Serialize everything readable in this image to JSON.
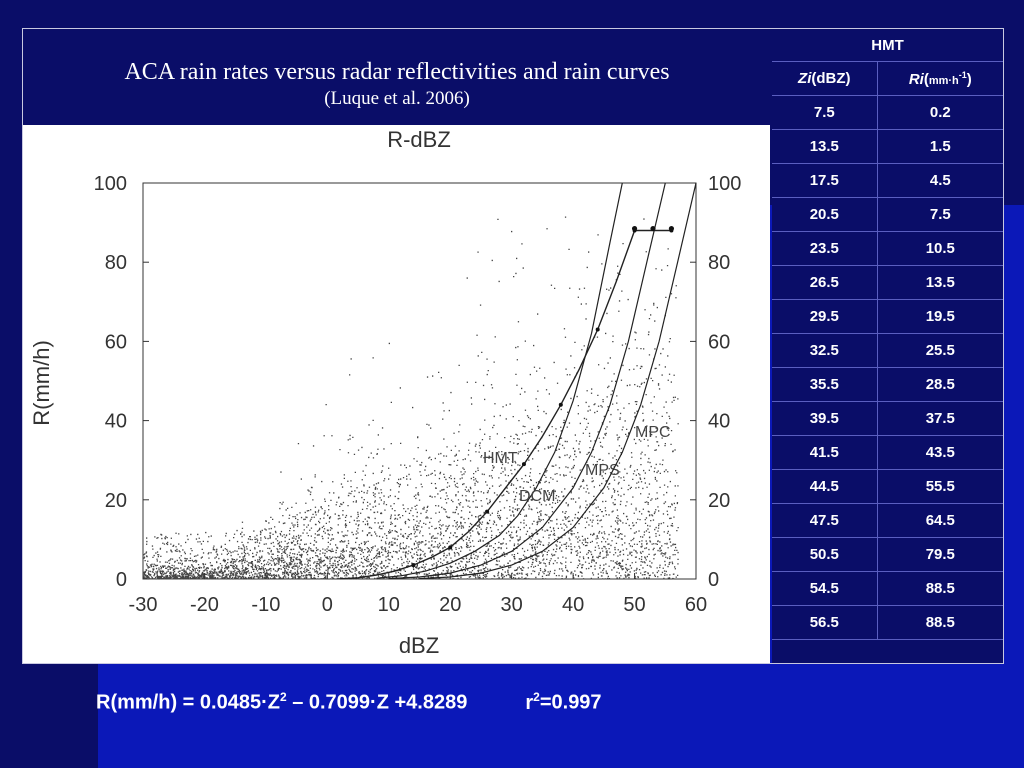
{
  "title": {
    "main": "ACA rain rates versus radar reflectivities and rain curves",
    "sub": "(Luque et al. 2006)"
  },
  "chart_data": {
    "type": "scatter",
    "title": "R-dBZ",
    "xlabel": "dBZ",
    "ylabel": "R(mm/h)",
    "xlim": [
      -30,
      60
    ],
    "ylim": [
      0,
      100
    ],
    "x_ticks": [
      "-30",
      "-20",
      "-10",
      "0",
      "10",
      "20",
      "30",
      "40",
      "50",
      "60"
    ],
    "y_ticks": [
      "0",
      "20",
      "40",
      "60",
      "80",
      "100"
    ],
    "grid": false,
    "curves": [
      {
        "label": "HMT",
        "x": [
          2,
          5,
          8,
          11,
          14,
          17,
          20,
          23,
          26,
          29,
          32,
          35,
          38,
          41,
          44,
          47,
          50,
          53,
          56
        ],
        "y": [
          0.05,
          0.3,
          1,
          2,
          3.5,
          5.5,
          8,
          12,
          17,
          23,
          29,
          36,
          44,
          53,
          63,
          75,
          88,
          88,
          88
        ]
      },
      {
        "label": "DCM",
        "x": [
          8,
          12,
          16,
          20,
          24,
          28,
          31,
          34,
          37,
          40,
          43,
          46,
          48
        ],
        "y": [
          0.2,
          0.8,
          2,
          4,
          7,
          11,
          16,
          23,
          32,
          45,
          62,
          85,
          100
        ]
      },
      {
        "label": "MPS",
        "x": [
          10,
          15,
          20,
          25,
          30,
          35,
          40,
          43,
          46,
          49,
          52,
          55
        ],
        "y": [
          0.1,
          0.5,
          1.5,
          3.5,
          7,
          13,
          23,
          32,
          44,
          60,
          80,
          100
        ]
      },
      {
        "label": "MPC",
        "x": [
          15,
          20,
          25,
          30,
          35,
          40,
          45,
          48,
          51,
          54,
          57,
          60
        ],
        "y": [
          0.1,
          0.5,
          1.5,
          3.5,
          7,
          13,
          23,
          32,
          44,
          60,
          80,
          100
        ]
      }
    ],
    "binned_points": {
      "x": [
        50,
        53,
        56
      ],
      "y": [
        88.5,
        88.5,
        88.5
      ]
    }
  },
  "table": {
    "title": "HMT",
    "col1_head": "Zi",
    "col1_unit": "(dBZ)",
    "col2_head": "Ri",
    "col2_open": "(",
    "col2_unit": "mm·h",
    "col2_sup": "-1",
    "col2_close": ")",
    "rows": [
      [
        "7.5",
        "0.2"
      ],
      [
        "13.5",
        "1.5"
      ],
      [
        "17.5",
        "4.5"
      ],
      [
        "20.5",
        "7.5"
      ],
      [
        "23.5",
        "10.5"
      ],
      [
        "26.5",
        "13.5"
      ],
      [
        "29.5",
        "19.5"
      ],
      [
        "32.5",
        "25.5"
      ],
      [
        "35.5",
        "28.5"
      ],
      [
        "39.5",
        "37.5"
      ],
      [
        "41.5",
        "43.5"
      ],
      [
        "44.5",
        "55.5"
      ],
      [
        "47.5",
        "64.5"
      ],
      [
        "50.5",
        "79.5"
      ],
      [
        "54.5",
        "88.5"
      ],
      [
        "56.5",
        "88.5"
      ]
    ]
  },
  "formula": {
    "lhs": "R(mm/h) = 0.0485·Z",
    "sup1": "2",
    "rhs": " – 0.7099·Z +4.8289",
    "r2_label": "r",
    "r2_sup": "2",
    "r2_value": "=0.997"
  }
}
